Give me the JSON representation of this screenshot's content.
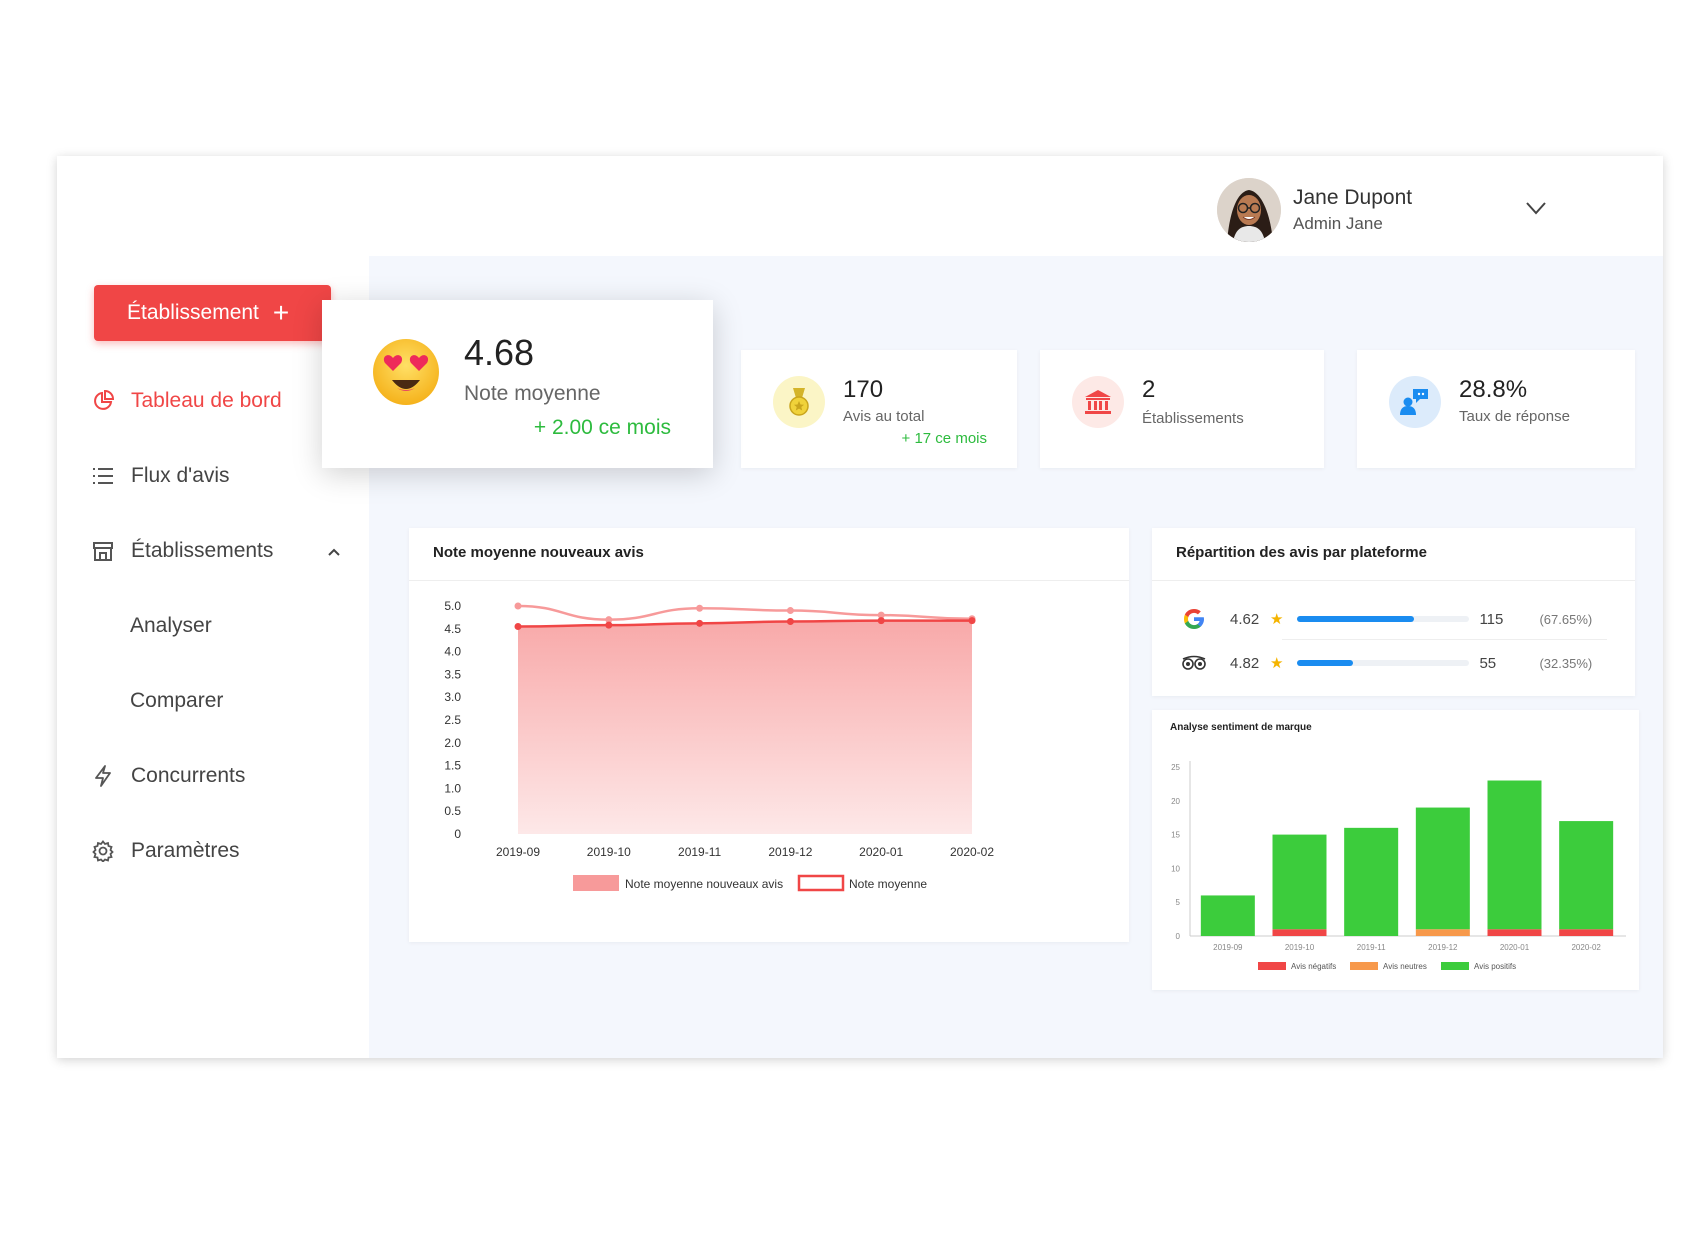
{
  "user": {
    "name": "Jane Dupont",
    "role": "Admin Jane"
  },
  "sidebar": {
    "cta_label": "Établissement",
    "items": [
      {
        "label": "Tableau de bord",
        "active": true,
        "icon": "pie-chart-icon"
      },
      {
        "label": "Flux d'avis",
        "icon": "list-icon"
      },
      {
        "label": "Établissements",
        "icon": "store-icon",
        "expanded": true
      },
      {
        "label": "Concurrents",
        "icon": "lightning-icon"
      },
      {
        "label": "Paramètres",
        "icon": "gear-icon"
      }
    ],
    "subitems": [
      {
        "label": "Analyser"
      },
      {
        "label": "Comparer"
      }
    ]
  },
  "stats": {
    "rating": {
      "value": "4.68",
      "label": "Note moyenne",
      "delta": "+ 2.00 ce mois",
      "icon": "heart-eyes-emoji-icon"
    },
    "reviews": {
      "value": "170",
      "label": "Avis au total",
      "delta": "+ 17 ce mois",
      "icon": "medal-icon"
    },
    "establishments": {
      "value": "2",
      "label": "Établissements",
      "icon": "bank-icon"
    },
    "response": {
      "value": "28.8%",
      "label": "Taux de réponse",
      "icon": "chat-user-icon"
    }
  },
  "platforms": {
    "title": "Répartition des avis par plateforme",
    "rows": [
      {
        "name": "Google",
        "icon": "google-icon",
        "rating": "4.62",
        "count": "115",
        "pct": "(67.65%)",
        "share": 0.6765
      },
      {
        "name": "TripAdvisor",
        "icon": "tripadvisor-icon",
        "rating": "4.82",
        "count": "55",
        "pct": "(32.35%)",
        "share": 0.3235
      }
    ]
  },
  "colors": {
    "accent": "#f04646",
    "positive": "#2dbb3e",
    "bar_blue": "#1a8cf0"
  },
  "chart_data": [
    {
      "type": "area",
      "title": "Note moyenne nouveaux avis",
      "categories": [
        "2019-09",
        "2019-10",
        "2019-11",
        "2019-12",
        "2020-01",
        "2020-02"
      ],
      "series": [
        {
          "name": "Note moyenne nouveaux avis",
          "values": [
            5.0,
            4.7,
            4.95,
            4.9,
            4.8,
            4.72
          ],
          "color": "#f79a9a"
        },
        {
          "name": "Note moyenne",
          "values": [
            4.55,
            4.58,
            4.62,
            4.66,
            4.68,
            4.68
          ],
          "color": "#f04646"
        }
      ],
      "ylim": [
        0,
        5.0
      ],
      "yticks": [
        "0",
        "0.5",
        "1.0",
        "1.5",
        "2.0",
        "2.5",
        "3.0",
        "3.5",
        "4.0",
        "4.5",
        "5.0"
      ],
      "legend": "bottom"
    },
    {
      "type": "bar",
      "stacked": true,
      "title": "Analyse sentiment de marque",
      "categories": [
        "2019-09",
        "2019-10",
        "2019-11",
        "2019-12",
        "2020-01",
        "2020-02"
      ],
      "series": [
        {
          "name": "Avis négatifs",
          "values": [
            0,
            1,
            0,
            0,
            1,
            1
          ],
          "color": "#f04646"
        },
        {
          "name": "Avis neutres",
          "values": [
            0,
            0,
            0,
            1,
            0,
            0
          ],
          "color": "#f7994b"
        },
        {
          "name": "Avis positifs",
          "values": [
            6,
            14,
            16,
            18,
            22,
            16
          ],
          "color": "#3ccc3c"
        }
      ],
      "ylim": [
        0,
        25
      ],
      "yticks": [
        "0",
        "5",
        "10",
        "15",
        "20",
        "25"
      ],
      "legend": "bottom"
    }
  ]
}
